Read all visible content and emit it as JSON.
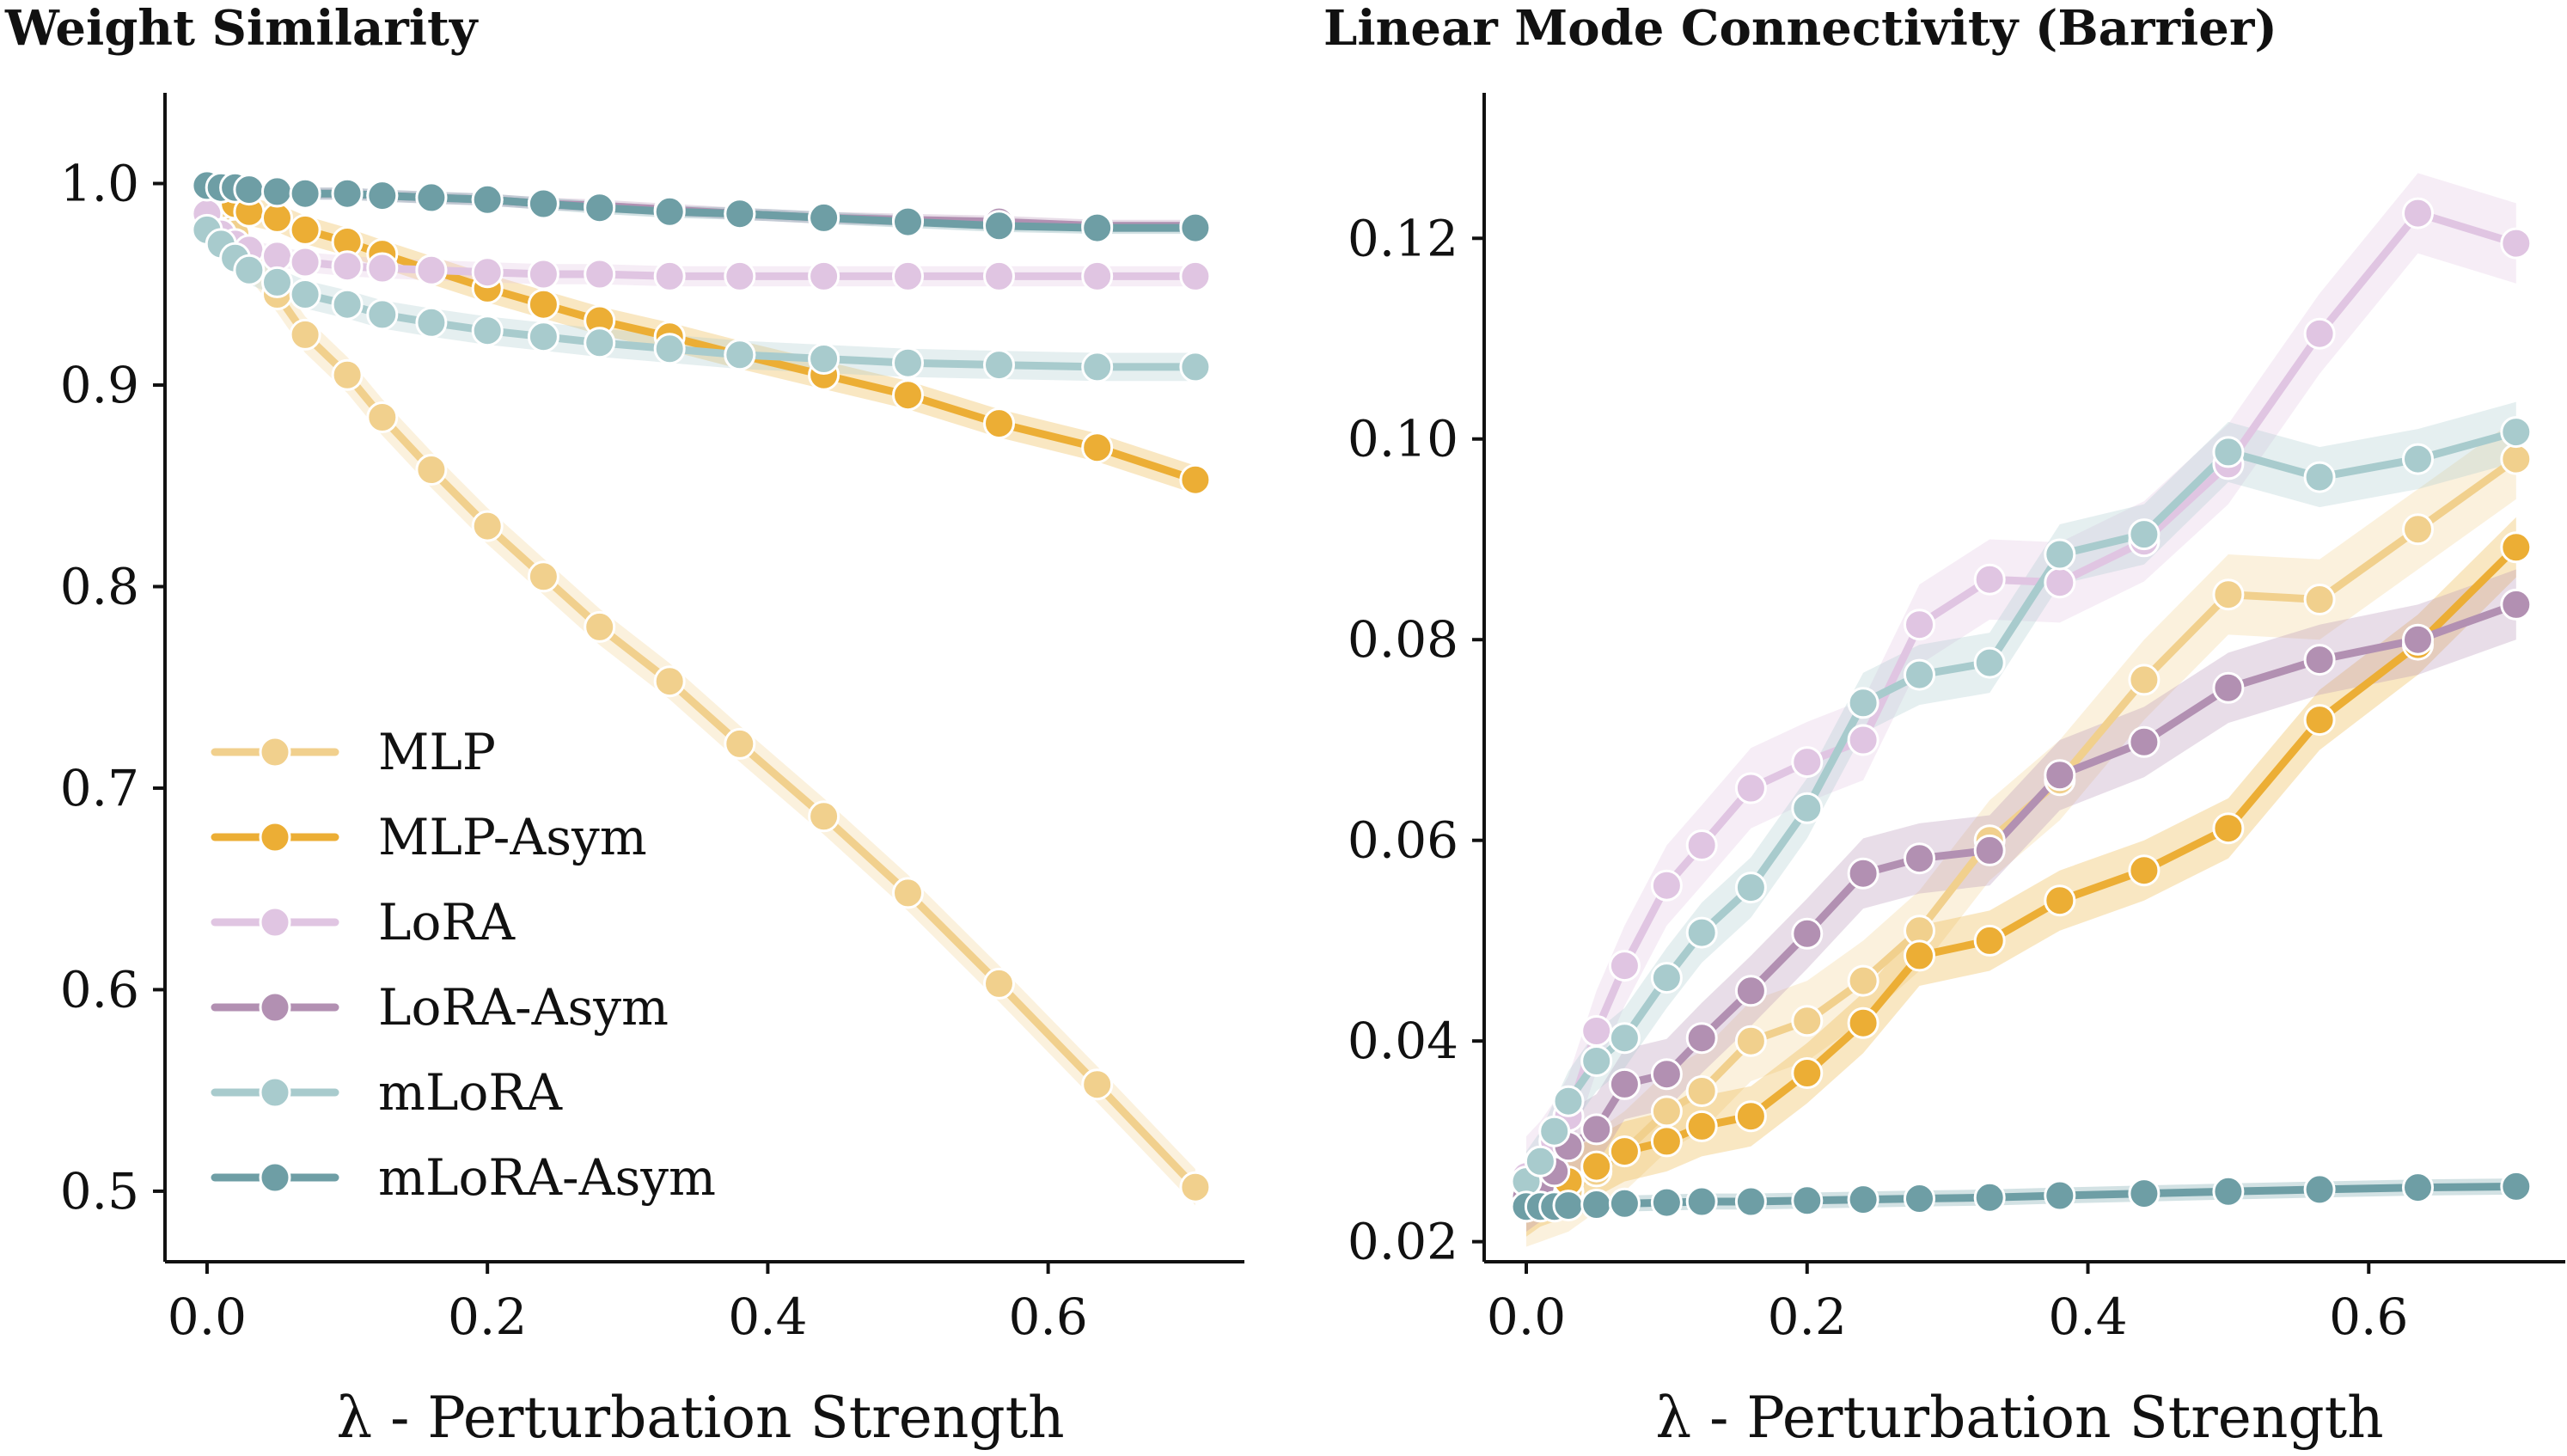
{
  "chart_data": [
    {
      "type": "line",
      "title": "Weight Similarity",
      "xlabel": "λ - Perturbation Strength",
      "ylabel": "",
      "xlim": [
        -0.03,
        0.74
      ],
      "ylim": [
        0.465,
        1.045
      ],
      "xticks": [
        0.0,
        0.2,
        0.4,
        0.6
      ],
      "xtick_labels": [
        "0.0",
        "0.2",
        "0.4",
        "0.6"
      ],
      "yticks": [
        0.5,
        0.6,
        0.7,
        0.8,
        0.9,
        1.0
      ],
      "ytick_labels": [
        "0.5",
        "0.6",
        "0.7",
        "0.8",
        "0.9",
        "1.0"
      ],
      "legend_position": "lower-left",
      "grid": false,
      "x": [
        0.0,
        0.01,
        0.02,
        0.03,
        0.05,
        0.07,
        0.1,
        0.125,
        0.16,
        0.2,
        0.24,
        0.28,
        0.33,
        0.38,
        0.44,
        0.5,
        0.565,
        0.635,
        0.705
      ],
      "series": [
        {
          "name": "MLP",
          "color": "#f1d08d",
          "band": 0.009,
          "values": [
            0.998,
            0.99,
            0.975,
            0.962,
            0.945,
            0.925,
            0.905,
            0.884,
            0.858,
            0.83,
            0.805,
            0.78,
            0.753,
            0.722,
            0.686,
            0.648,
            0.603,
            0.553,
            0.502
          ]
        },
        {
          "name": "MLP-Asym",
          "color": "#ecae35",
          "band": 0.007,
          "values": [
            0.999,
            0.995,
            0.99,
            0.986,
            0.983,
            0.977,
            0.971,
            0.965,
            0.957,
            0.948,
            0.94,
            0.932,
            0.924,
            0.915,
            0.905,
            0.895,
            0.881,
            0.869,
            0.853
          ]
        },
        {
          "name": "LoRA",
          "color": "#e0c5e2",
          "band": 0.005,
          "values": [
            0.985,
            0.975,
            0.97,
            0.967,
            0.964,
            0.961,
            0.959,
            0.958,
            0.957,
            0.956,
            0.955,
            0.955,
            0.954,
            0.954,
            0.954,
            0.954,
            0.954,
            0.954,
            0.954
          ]
        },
        {
          "name": "LoRA-Asym",
          "color": "#b290b2",
          "band": 0.003,
          "values": [
            0.999,
            0.998,
            0.998,
            0.997,
            0.996,
            0.995,
            0.995,
            0.994,
            0.993,
            0.992,
            0.99,
            0.989,
            0.987,
            0.985,
            0.983,
            0.982,
            0.981,
            0.979,
            0.979
          ]
        },
        {
          "name": "mLoRA",
          "color": "#a8cbcd",
          "band": 0.007,
          "values": [
            0.977,
            0.97,
            0.963,
            0.957,
            0.951,
            0.945,
            0.94,
            0.935,
            0.931,
            0.927,
            0.924,
            0.921,
            0.918,
            0.915,
            0.913,
            0.911,
            0.91,
            0.909,
            0.909
          ]
        },
        {
          "name": "mLoRA-Asym",
          "color": "#6e9ea5",
          "band": 0.003,
          "values": [
            0.999,
            0.998,
            0.998,
            0.997,
            0.996,
            0.995,
            0.995,
            0.994,
            0.993,
            0.992,
            0.99,
            0.988,
            0.986,
            0.985,
            0.983,
            0.981,
            0.979,
            0.978,
            0.978
          ]
        }
      ]
    },
    {
      "type": "line",
      "title": "Linear Mode Connectivity (Barrier)",
      "xlabel": "λ - Perturbation Strength",
      "ylabel": "",
      "xlim": [
        -0.03,
        0.74
      ],
      "ylim": [
        0.018,
        0.1345
      ],
      "xticks": [
        0.0,
        0.2,
        0.4,
        0.6
      ],
      "xtick_labels": [
        "0.0",
        "0.2",
        "0.4",
        "0.6"
      ],
      "yticks": [
        0.02,
        0.04,
        0.06,
        0.08,
        0.1,
        0.12
      ],
      "ytick_labels": [
        "0.02",
        "0.04",
        "0.06",
        "0.08",
        "0.10",
        "0.12"
      ],
      "legend_position": "none",
      "grid": false,
      "x": [
        0.0,
        0.01,
        0.02,
        0.03,
        0.05,
        0.07,
        0.1,
        0.125,
        0.16,
        0.2,
        0.24,
        0.28,
        0.33,
        0.38,
        0.44,
        0.5,
        0.565,
        0.635,
        0.705
      ],
      "series": [
        {
          "name": "MLP",
          "color": "#f1d08d",
          "band": 0.004,
          "values": [
            0.0235,
            0.024,
            0.0245,
            0.025,
            0.027,
            0.029,
            0.033,
            0.035,
            0.04,
            0.042,
            0.046,
            0.051,
            0.06,
            0.066,
            0.076,
            0.0845,
            0.084,
            0.091,
            0.098
          ]
        },
        {
          "name": "MLP-Asym",
          "color": "#ecae35",
          "band": 0.003,
          "values": [
            0.0235,
            0.0245,
            0.025,
            0.026,
            0.0275,
            0.029,
            0.03,
            0.0315,
            0.0325,
            0.0368,
            0.0418,
            0.0485,
            0.05,
            0.054,
            0.057,
            0.0612,
            0.072,
            0.0795,
            0.0892
          ]
        },
        {
          "name": "LoRA",
          "color": "#e0c5e2",
          "band": 0.004,
          "values": [
            0.0265,
            0.028,
            0.03,
            0.0325,
            0.041,
            0.0475,
            0.0555,
            0.0595,
            0.0652,
            0.0678,
            0.07,
            0.0815,
            0.086,
            0.0857,
            0.0898,
            0.0975,
            0.1105,
            0.1225,
            0.1195
          ]
        },
        {
          "name": "LoRA-Asym",
          "color": "#b290b2",
          "band": 0.0035,
          "values": [
            0.0245,
            0.0255,
            0.027,
            0.0295,
            0.0312,
            0.0357,
            0.0367,
            0.0403,
            0.045,
            0.0507,
            0.0567,
            0.0582,
            0.059,
            0.0665,
            0.0698,
            0.0752,
            0.078,
            0.08,
            0.0835
          ]
        },
        {
          "name": "mLoRA",
          "color": "#a8cbcd",
          "band": 0.003,
          "values": [
            0.026,
            0.028,
            0.031,
            0.034,
            0.038,
            0.0403,
            0.0463,
            0.0508,
            0.0553,
            0.0632,
            0.0737,
            0.0765,
            0.0777,
            0.0885,
            0.0905,
            0.0987,
            0.0962,
            0.098,
            0.1007
          ]
        },
        {
          "name": "mLoRA-Asym",
          "color": "#6e9ea5",
          "band": 0.0008,
          "values": [
            0.0235,
            0.0235,
            0.0235,
            0.0236,
            0.0237,
            0.0238,
            0.0239,
            0.024,
            0.024,
            0.0241,
            0.0242,
            0.0243,
            0.0244,
            0.0246,
            0.0248,
            0.025,
            0.0252,
            0.0254,
            0.0255
          ]
        }
      ]
    }
  ]
}
